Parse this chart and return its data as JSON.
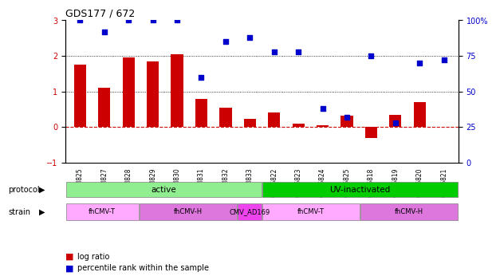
{
  "title": "GDS177 / 672",
  "samples": [
    "GSM825",
    "GSM827",
    "GSM828",
    "GSM829",
    "GSM830",
    "GSM831",
    "GSM832",
    "GSM833",
    "GSM6822",
    "GSM6823",
    "GSM6824",
    "GSM6825",
    "GSM6818",
    "GSM6819",
    "GSM6820",
    "GSM6821"
  ],
  "log_ratio": [
    1.75,
    1.1,
    1.95,
    1.85,
    2.05,
    0.8,
    0.55,
    0.22,
    0.42,
    0.1,
    0.05,
    0.33,
    -0.3,
    0.35,
    0.7,
    0.0
  ],
  "percentile": [
    100,
    92,
    100,
    100,
    100,
    60,
    85,
    88,
    78,
    78,
    38,
    32,
    75,
    28,
    70,
    72
  ],
  "protocol_groups": [
    {
      "label": "active",
      "start": 0,
      "end": 7,
      "color": "#90ee90"
    },
    {
      "label": "UV-inactivated",
      "start": 8,
      "end": 15,
      "color": "#00cc00"
    }
  ],
  "strain_groups": [
    {
      "label": "fhCMV-T",
      "start": 0,
      "end": 2,
      "color": "#ffaaff"
    },
    {
      "label": "fhCMV-H",
      "start": 3,
      "end": 6,
      "color": "#dd77dd"
    },
    {
      "label": "CMV_AD169",
      "start": 7,
      "end": 7,
      "color": "#ee44ee"
    },
    {
      "label": "fhCMV-T",
      "start": 8,
      "end": 11,
      "color": "#ffaaff"
    },
    {
      "label": "fhCMV-H",
      "start": 12,
      "end": 15,
      "color": "#dd77dd"
    }
  ],
  "bar_color": "#cc0000",
  "dot_color": "#0000cc",
  "left_ylim": [
    -1,
    3
  ],
  "right_ylim": [
    0,
    100
  ],
  "left_yticks": [
    -1,
    0,
    1,
    2,
    3
  ],
  "right_yticks": [
    0,
    25,
    50,
    75,
    100
  ],
  "right_yticklabels": [
    "0",
    "25",
    "50",
    "75",
    "100%"
  ]
}
